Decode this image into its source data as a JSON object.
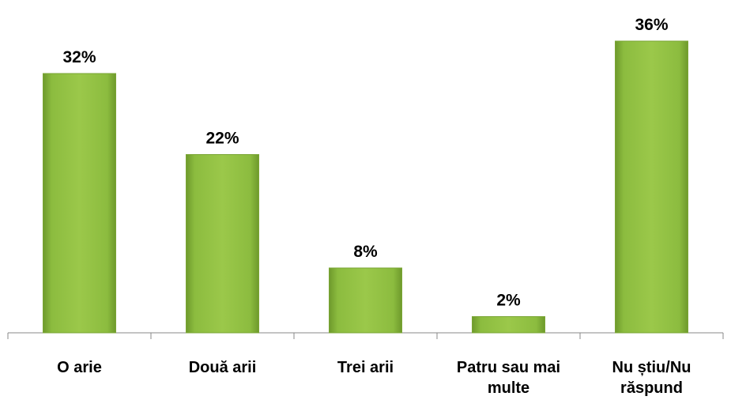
{
  "chart_data": {
    "type": "bar",
    "categories": [
      "O arie",
      "Două arii",
      "Trei arii",
      "Patru sau mai multe",
      "Nu știu/Nu răspund"
    ],
    "values": [
      32,
      22,
      8,
      2,
      36
    ],
    "value_labels": [
      "32%",
      "22%",
      "8%",
      "2%",
      "36%"
    ],
    "color": "#9bc84a"
  }
}
